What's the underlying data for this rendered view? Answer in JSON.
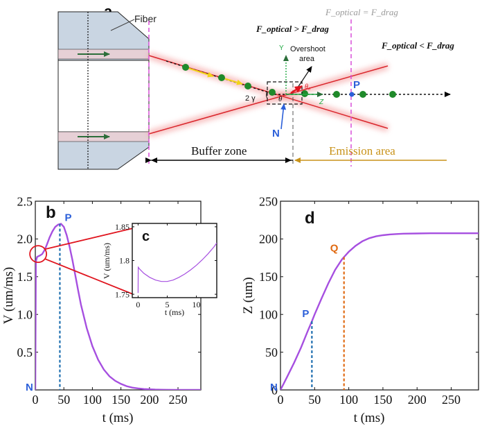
{
  "figure": {
    "panel_a": {
      "label": "a",
      "fiber_label": "Fiber",
      "force_eq": "F_optical = F_drag",
      "force_gt": "F_optical > F_drag",
      "force_lt": "F_optical < F_drag",
      "overshoot_line1": "Overshoot",
      "overshoot_line2": "area",
      "axis_y": "Y",
      "axis_z": "Z",
      "theta": "θ",
      "theta0": "θ₀",
      "gamma": "2 γ",
      "point_p": "P",
      "point_n": "N",
      "buffer_label": "Buffer zone",
      "emission_label": "Emission area",
      "colors": {
        "beam": "#d9262c",
        "particle": "#1f8a2a",
        "arrow_y": "#22aa44",
        "point_p": "#2b5fd9",
        "dashed_pink": "#d94fd9",
        "emission": "#c89218"
      }
    }
  },
  "chart_data": [
    {
      "panel": "b",
      "type": "line",
      "title": "",
      "xlabel": "t (ms)",
      "ylabel": "V (um/ms)",
      "xlim": [
        0,
        290
      ],
      "ylim": [
        0,
        2.5
      ],
      "xticks": [
        0,
        50,
        100,
        150,
        200,
        250
      ],
      "yticks": [
        0.5,
        1.0,
        1.5,
        2.0,
        2.5
      ],
      "ytick_labels": [
        "0.5",
        "1.0",
        "1.5",
        "2.0",
        "2.5"
      ],
      "series": [
        {
          "name": "V",
          "color": "#a64fe0",
          "x": [
            0,
            1,
            3,
            5,
            8,
            12,
            16,
            20,
            25,
            30,
            35,
            40,
            45,
            50,
            55,
            60,
            65,
            70,
            75,
            80,
            90,
            100,
            110,
            120,
            130,
            140,
            150,
            160,
            170,
            180,
            190,
            200,
            210,
            220,
            230,
            250,
            270,
            290
          ],
          "y": [
            0,
            1.7,
            1.76,
            1.77,
            1.78,
            1.8,
            1.85,
            1.92,
            2.02,
            2.1,
            2.16,
            2.19,
            2.2,
            2.16,
            2.05,
            1.9,
            1.72,
            1.52,
            1.32,
            1.13,
            0.82,
            0.58,
            0.4,
            0.27,
            0.18,
            0.12,
            0.08,
            0.05,
            0.03,
            0.02,
            0.012,
            0.008,
            0.005,
            0.003,
            0.002,
            0.001,
            0.0,
            0.0
          ]
        }
      ],
      "annotations": {
        "peak_label": "P",
        "peak_x": 43,
        "peak_y": 2.2,
        "start_label": "N",
        "panel_label": "b"
      }
    },
    {
      "panel": "c",
      "type": "line",
      "title": "",
      "xlabel": "t (ms)",
      "ylabel": "V (um/ms)",
      "xlim": [
        -1,
        13.5
      ],
      "ylim": [
        1.745,
        1.855
      ],
      "xticks": [
        0,
        5,
        10
      ],
      "yticks": [
        1.75,
        1.8,
        1.85
      ],
      "ytick_labels": [
        "1.75",
        "1.8",
        "1.85"
      ],
      "series": [
        {
          "name": "V",
          "color": "#a64fe0",
          "x": [
            0,
            0.02,
            0.3,
            1,
            2,
            3,
            4,
            5,
            6,
            7,
            8,
            9,
            10,
            11,
            12,
            13,
            13.5
          ],
          "y": [
            1.752,
            1.79,
            1.787,
            1.781,
            1.775,
            1.771,
            1.769,
            1.769,
            1.771,
            1.775,
            1.78,
            1.786,
            1.793,
            1.801,
            1.81,
            1.82,
            1.826
          ]
        }
      ],
      "annotations": {
        "panel_label": "c"
      }
    },
    {
      "panel": "d",
      "type": "line",
      "title": "",
      "xlabel": "t (ms)",
      "ylabel": "Z (um)",
      "xlim": [
        0,
        290
      ],
      "ylim": [
        0,
        250
      ],
      "xticks": [
        0,
        50,
        100,
        150,
        200,
        250
      ],
      "yticks": [
        0,
        50,
        100,
        150,
        200,
        250
      ],
      "ytick_labels": [
        "0",
        "50",
        "100",
        "150",
        "200",
        "250"
      ],
      "series": [
        {
          "name": "Z",
          "color": "#a64fe0",
          "x": [
            0,
            5,
            10,
            20,
            30,
            40,
            46,
            50,
            60,
            70,
            80,
            90,
            93,
            100,
            110,
            120,
            130,
            140,
            150,
            160,
            170,
            180,
            200,
            220,
            240,
            260,
            290
          ],
          "y": [
            0,
            8.8,
            17.8,
            36,
            56,
            78,
            91,
            100,
            121,
            141,
            159,
            173,
            176,
            183,
            191,
            197,
            201,
            203.5,
            205,
            206,
            206.5,
            207,
            207.3,
            207.5,
            207.5,
            207.5,
            207.5
          ]
        }
      ],
      "annotations": {
        "p_label": "P",
        "p_x": 46,
        "p_y": 91,
        "q_label": "Q",
        "q_x": 93,
        "q_y": 176,
        "start_label": "N",
        "panel_label": "d"
      }
    }
  ]
}
